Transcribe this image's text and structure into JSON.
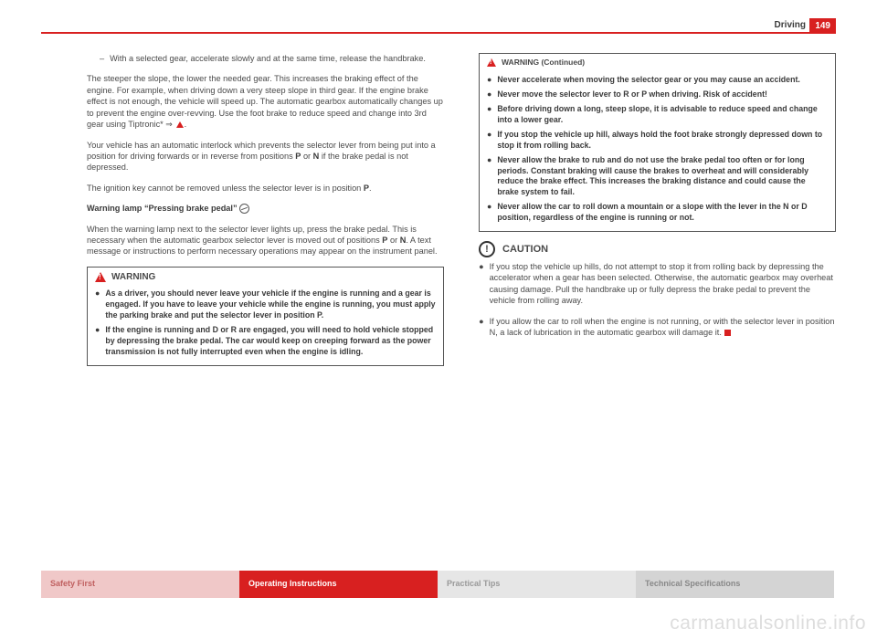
{
  "header": {
    "page_number": "149",
    "section": "Driving"
  },
  "left_column": {
    "bullet_dash": "–",
    "bullet_text": "With a selected gear, accelerate slowly and at the same time, release the handbrake.",
    "p1": "The steeper the slope, the lower the needed gear. This increases the braking effect of the engine. For example, when driving down a very steep slope in third gear. If the engine brake effect is not enough, the vehicle will speed up. The automatic gearbox automatically changes up to prevent the engine over-revving. Use the foot brake to reduce speed and change into 3rd gear using Tiptronic* ⇒ ",
    "p1_suffix": ".",
    "p2_a": "Your vehicle has an automatic interlock which prevents the selector lever from being put into a position for driving forwards or in reverse from positions ",
    "p2_p": "P",
    "p2_or": " or ",
    "p2_n": "N",
    "p2_b": " if the brake pedal is not depressed.",
    "p3_a": "The ignition key cannot be removed unless the selector lever is in position ",
    "p3_p": "P",
    "p3_b": ".",
    "warn_lamp_heading": "Warning lamp “Pressing brake pedal” ",
    "p4_a": "When the warning lamp next to the selector lever lights up, press the brake pedal. This is necessary when the automatic gearbox selector lever is moved out of positions ",
    "p4_p": "P",
    "p4_or": " or ",
    "p4_n": "N",
    "p4_b": ". A text message or instructions to perform necessary operations may appear on the instrument panel.",
    "warning_label": "WARNING",
    "w_items": [
      "As a driver, you should never leave your vehicle if the engine is running and a gear is engaged. If you have to leave your vehicle while the engine is running, you must apply the parking brake and put the selector lever in position P.",
      "If the engine is running and D or R are engaged, you will need to hold vehicle stopped by depressing the brake pedal. The car would keep on creeping forward as the power transmission is not fully interrupted even when the engine is idling."
    ]
  },
  "right_column": {
    "warning_cont_label": "WARNING (Continued)",
    "wc_items": [
      "Never accelerate when moving the selector gear or you may cause an accident.",
      "Never move the selector lever to R or P when driving. Risk of accident!",
      "Before driving down a long, steep slope, it is advisable to reduce speed and change into a lower gear.",
      "If you stop the vehicle up hill, always hold the foot brake strongly depressed down to stop it from rolling back.",
      "Never allow the brake to rub and do not use the brake pedal too often or for long periods. Constant braking will cause the brakes to overheat and will considerably reduce the brake effect. This increases the braking distance and could cause the brake system to fail.",
      "Never allow the car to roll down a mountain or a slope with the lever in the N or D position, regardless of the engine is running or not."
    ],
    "caution_label": "CAUTION",
    "caution_items": [
      "If you stop the vehicle up hills, do not attempt to stop it from rolling back by depressing the accelerator when a gear has been selected. Otherwise, the automatic gearbox may overheat causing damage. Pull the handbrake up or fully depress the brake pedal to prevent the vehicle from rolling away.",
      "If you allow the car to roll when the engine is not running, or with the selector lever in position N, a lack of lubrication in the automatic gearbox will damage it."
    ]
  },
  "nav": {
    "safety": "Safety First",
    "operating": "Operating Instructions",
    "tips": "Practical Tips",
    "tech": "Technical Specifications"
  },
  "watermark": "carmanualsonline.info",
  "colors": {
    "accent_red": "#d82020",
    "text": "#3a3a3a",
    "nav_safety_bg": "#f0c8c8",
    "nav_tips_bg": "#e6e6e6",
    "nav_tech_bg": "#d4d4d4",
    "watermark": "#dddddd"
  }
}
